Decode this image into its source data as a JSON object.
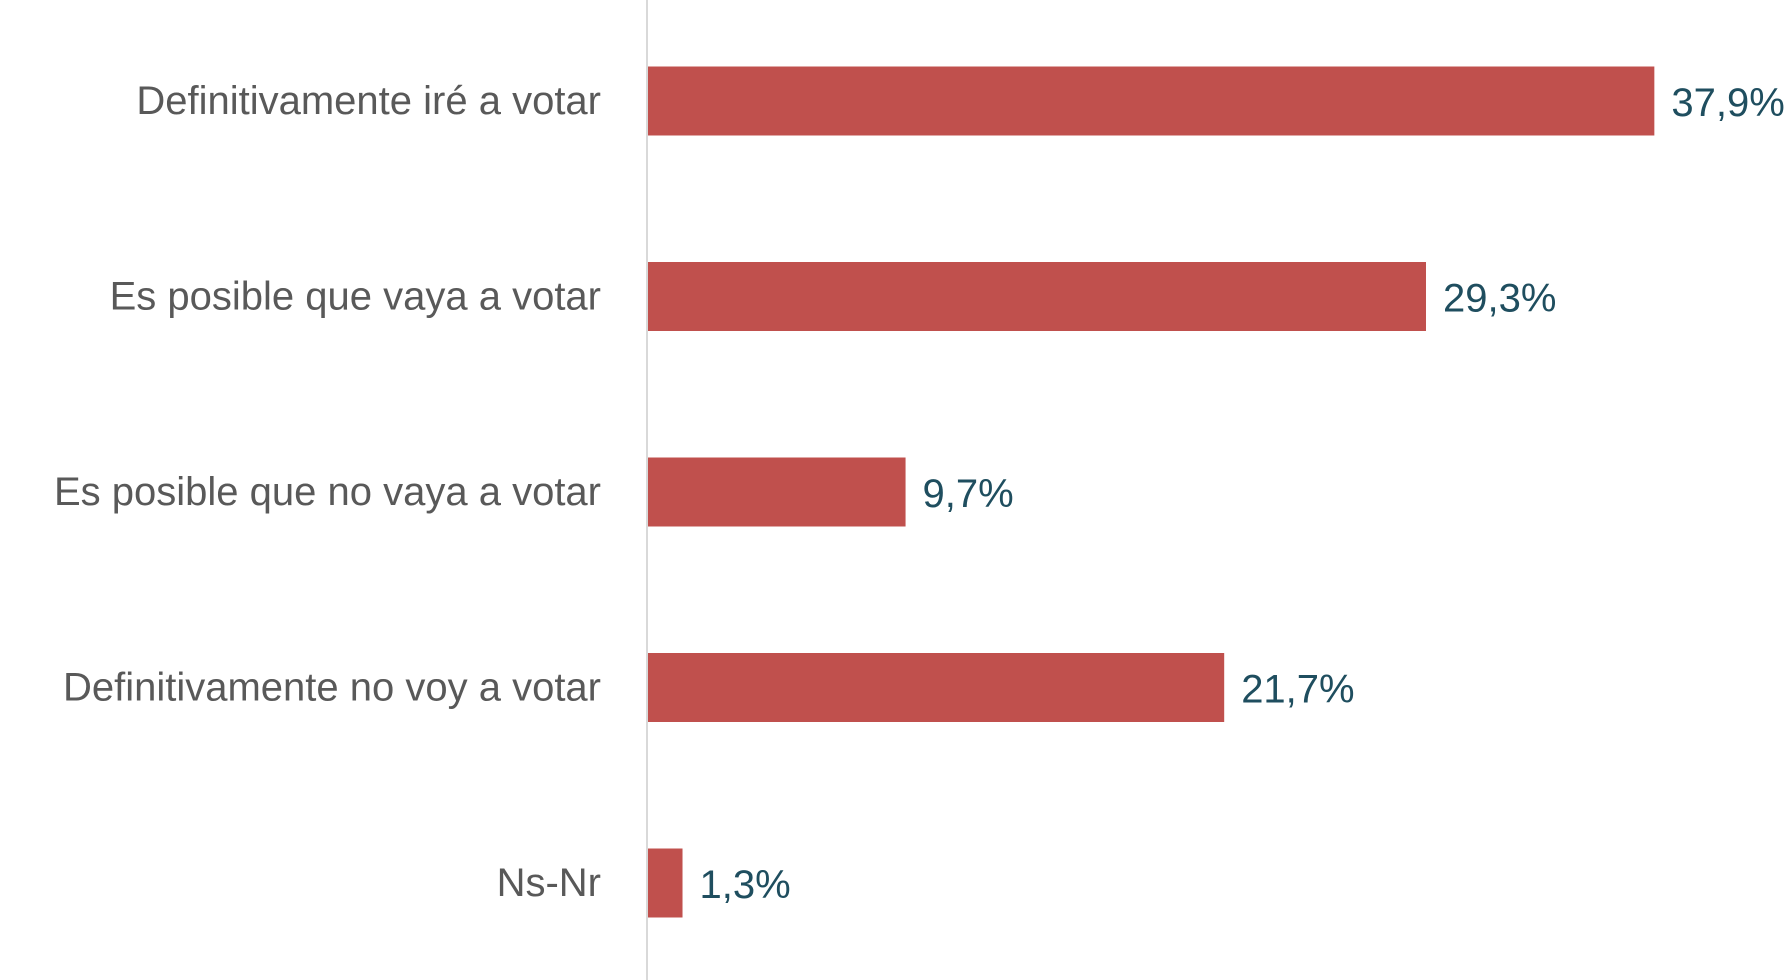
{
  "chart_data": {
    "type": "bar",
    "orientation": "horizontal",
    "categories": [
      "Definitivamente iré a votar",
      "Es posible que vaya a votar",
      "Es posible que no vaya a votar",
      "Definitivamente no voy a votar",
      "Ns-Nr"
    ],
    "values": [
      37.9,
      29.3,
      9.7,
      21.7,
      1.3
    ],
    "value_labels": [
      "37,9%",
      "29,3%",
      "9,7%",
      "21,7%",
      "1,3%"
    ],
    "xlim": [
      0,
      38
    ],
    "grid": false,
    "legend": "none",
    "colors": {
      "bar": "#c0504d",
      "value_label": "#1f4e5f",
      "category_label": "#595959",
      "axis_line": "#d9d9d9"
    }
  }
}
